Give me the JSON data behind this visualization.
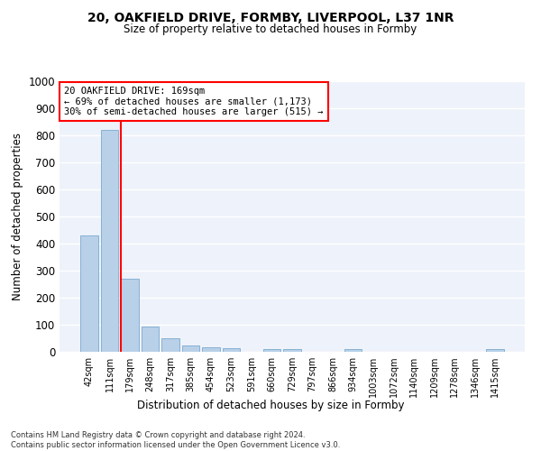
{
  "title_line1": "20, OAKFIELD DRIVE, FORMBY, LIVERPOOL, L37 1NR",
  "title_line2": "Size of property relative to detached houses in Formby",
  "xlabel": "Distribution of detached houses by size in Formby",
  "ylabel": "Number of detached properties",
  "categories": [
    "42sqm",
    "111sqm",
    "179sqm",
    "248sqm",
    "317sqm",
    "385sqm",
    "454sqm",
    "523sqm",
    "591sqm",
    "660sqm",
    "729sqm",
    "797sqm",
    "866sqm",
    "934sqm",
    "1003sqm",
    "1072sqm",
    "1140sqm",
    "1209sqm",
    "1278sqm",
    "1346sqm",
    "1415sqm"
  ],
  "values": [
    430,
    820,
    270,
    93,
    50,
    25,
    18,
    12,
    0,
    11,
    10,
    0,
    0,
    10,
    0,
    0,
    0,
    0,
    0,
    0,
    11
  ],
  "bar_color": "#b8d0e8",
  "bar_edge_color": "#6a9fc8",
  "property_line_x": 2,
  "property_line_color": "red",
  "ylim": [
    0,
    1000
  ],
  "yticks": [
    0,
    100,
    200,
    300,
    400,
    500,
    600,
    700,
    800,
    900,
    1000
  ],
  "annotation_text": "20 OAKFIELD DRIVE: 169sqm\n← 69% of detached houses are smaller (1,173)\n30% of semi-detached houses are larger (515) →",
  "annotation_box_color": "white",
  "annotation_box_edge_color": "red",
  "footer_line1": "Contains HM Land Registry data © Crown copyright and database right 2024.",
  "footer_line2": "Contains public sector information licensed under the Open Government Licence v3.0.",
  "bg_color": "#eef2fa",
  "grid_color": "white"
}
